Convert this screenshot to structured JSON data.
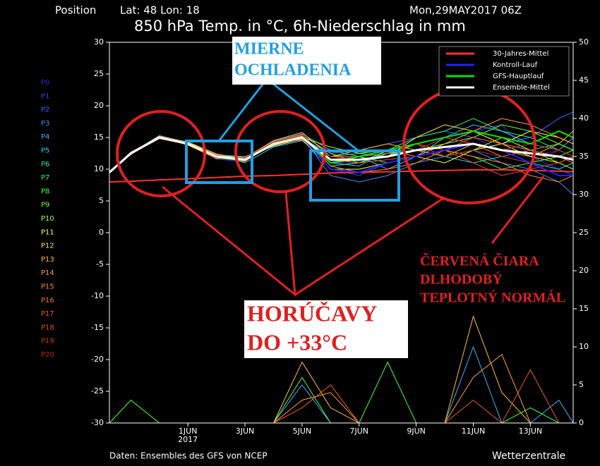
{
  "chart_data": {
    "type": "line",
    "header_left": "Position",
    "position": "Lat: 48 Lon: 18",
    "date": "Mon,29MAY2017 06Z",
    "title": "850 hPa Temp. in °C, 6h-Niederschlag in mm",
    "footer_left": "Daten: Ensembles des GFS von NCEP",
    "footer_right": "Wetterzentrale",
    "x_sublabel": "2017",
    "legend": "upper right",
    "x": [
      29.25,
      30,
      31,
      32,
      33,
      34,
      35,
      36,
      37,
      38,
      39,
      40,
      41,
      42,
      43,
      44,
      45,
      45.5
    ],
    "xlim": [
      29.25,
      45.5
    ],
    "xticks": [
      {
        "value": 32,
        "label": "1JUN"
      },
      {
        "value": 34,
        "label": "3JUN"
      },
      {
        "value": 36,
        "label": "5JUN"
      },
      {
        "value": 38,
        "label": "7JUN"
      },
      {
        "value": 40,
        "label": "9JUN"
      },
      {
        "value": 42,
        "label": "11JUN"
      },
      {
        "value": 44,
        "label": "13JUN"
      }
    ],
    "ylim": [
      -30,
      30
    ],
    "yticks": [
      -30,
      -25,
      -20,
      -15,
      -10,
      -5,
      0,
      5,
      10,
      15,
      20,
      25,
      30
    ],
    "y2lim": [
      0,
      50
    ],
    "y2ticks": [
      0,
      5,
      10,
      15,
      20,
      25,
      30,
      35,
      40,
      45,
      50
    ],
    "members": [
      {
        "name": "P0",
        "color": "#2828d8",
        "values": [
          9.5,
          12.5,
          15,
          14,
          12,
          11.5,
          14,
          15,
          11,
          11,
          12,
          13,
          14,
          15,
          13,
          12,
          13,
          12
        ]
      },
      {
        "name": "P1",
        "color": "#3040ff",
        "values": [
          9.4,
          12.3,
          15.2,
          14.3,
          11.6,
          11.2,
          14.2,
          15.5,
          10,
          9,
          11,
          12,
          14,
          16,
          17,
          12,
          10,
          9
        ]
      },
      {
        "name": "P2",
        "color": "#3068ff",
        "values": [
          9.6,
          12.6,
          15.1,
          13.8,
          12.3,
          12,
          13.6,
          14.8,
          12.5,
          13,
          14,
          15,
          16,
          15,
          14,
          15,
          18,
          19
        ]
      },
      {
        "name": "P3",
        "color": "#3890ff",
        "values": [
          9.5,
          12.4,
          14.8,
          14.1,
          11.8,
          11.4,
          13.8,
          15.2,
          9,
          8,
          9,
          11,
          12,
          13,
          11,
          10,
          8,
          6
        ]
      },
      {
        "name": "P4",
        "color": "#40b0ff",
        "values": [
          9.5,
          12.7,
          15,
          14,
          12.2,
          11.8,
          14.4,
          15.6,
          13,
          12,
          10,
          12,
          15,
          17,
          16,
          14,
          13,
          15
        ],
        "precip": [
          0,
          0,
          0,
          0,
          0,
          0,
          0,
          5,
          0,
          0,
          0,
          0,
          0,
          10,
          0,
          0,
          3,
          0
        ]
      },
      {
        "name": "P5",
        "color": "#30d0e0",
        "values": [
          9.4,
          12.5,
          15.3,
          14.2,
          12.4,
          11,
          13.5,
          14.5,
          11,
          10.5,
          13,
          14,
          12,
          11,
          12,
          11,
          10,
          11
        ]
      },
      {
        "name": "P6",
        "color": "#30e0a0",
        "values": [
          9.6,
          12.4,
          14.9,
          13.9,
          11.9,
          11.6,
          14.1,
          15.1,
          12,
          12.5,
          12,
          14,
          15,
          16,
          14,
          13,
          14,
          13
        ]
      },
      {
        "name": "P7",
        "color": "#30f070",
        "values": [
          9.5,
          12.6,
          15.1,
          14,
          12,
          11.7,
          14,
          15.3,
          10.5,
          11,
          13,
          15,
          16,
          18,
          16,
          15,
          13,
          12
        ]
      },
      {
        "name": "P8",
        "color": "#40ff40",
        "values": [
          9.5,
          12.5,
          15,
          14.1,
          12.1,
          11.5,
          13.9,
          14.9,
          11.5,
          12,
          11,
          12,
          13,
          12,
          10,
          11,
          12,
          13
        ],
        "precip": [
          0,
          3,
          0,
          0,
          0,
          0,
          0,
          6,
          0,
          0,
          8,
          0,
          0,
          0,
          0,
          2,
          0,
          0
        ]
      },
      {
        "name": "P9",
        "color": "#70ff30",
        "values": [
          9.4,
          12.4,
          15,
          13.9,
          11.8,
          11.3,
          14.3,
          15.4,
          12.5,
          11,
          12.5,
          13,
          14,
          15,
          17,
          16,
          14,
          13
        ]
      },
      {
        "name": "P10",
        "color": "#a0ff30",
        "values": [
          9.6,
          12.6,
          15.2,
          14.2,
          12.2,
          11.9,
          14,
          15,
          13.5,
          12.5,
          13,
          14,
          12,
          13,
          15,
          13,
          11,
          10
        ]
      },
      {
        "name": "P11",
        "color": "#ffff40",
        "values": [
          9.5,
          12.5,
          14.9,
          14,
          12,
          11.6,
          13.7,
          14.7,
          10,
          10,
          11,
          12,
          11,
          13,
          14,
          16,
          15,
          14
        ]
      },
      {
        "name": "P12",
        "color": "#ffe040",
        "values": [
          9.5,
          12.3,
          15,
          14.3,
          12.4,
          11.4,
          14.2,
          15.2,
          11,
          11.5,
          12,
          15,
          17,
          16,
          14,
          12,
          11,
          12
        ]
      },
      {
        "name": "P13",
        "color": "#ffc030",
        "values": [
          9.5,
          12.6,
          15.1,
          13.8,
          11.7,
          11.8,
          14.5,
          15.8,
          12,
          13,
          14,
          13,
          12,
          14,
          13,
          12,
          14,
          16
        ],
        "precip": [
          0,
          0,
          0,
          0,
          0,
          0,
          0,
          8,
          2,
          0,
          0,
          0,
          0,
          14,
          4,
          0,
          0,
          0
        ]
      },
      {
        "name": "P14",
        "color": "#ffa030",
        "values": [
          9.4,
          12.5,
          15,
          14,
          12,
          11.5,
          13.8,
          15,
          11,
          12,
          13,
          12,
          14,
          16,
          18,
          17,
          15,
          14
        ],
        "precip": [
          0,
          0,
          0,
          0,
          0,
          0,
          0,
          3,
          4,
          0,
          0,
          0,
          0,
          6,
          9,
          0,
          0,
          0
        ]
      },
      {
        "name": "P15",
        "color": "#ff8830",
        "values": [
          9.6,
          12.4,
          15.2,
          14.1,
          12.3,
          11.2,
          14.1,
          15.4,
          10.5,
          9.5,
          10,
          11,
          13,
          12,
          11,
          9,
          8,
          9
        ]
      },
      {
        "name": "P16",
        "color": "#ff7030",
        "values": [
          9.5,
          12.5,
          14.8,
          13.9,
          12.1,
          11.6,
          14,
          14.6,
          12,
          12,
          12.5,
          14,
          15,
          14,
          12,
          13,
          12,
          11
        ]
      },
      {
        "name": "P17",
        "color": "#f05828",
        "values": [
          9.5,
          12.7,
          15,
          14.2,
          11.9,
          11.4,
          13.9,
          15.1,
          11.5,
          11,
          11.5,
          12,
          13,
          15,
          14,
          13,
          12,
          11
        ],
        "precip": [
          0,
          0,
          0,
          0,
          0,
          0,
          0,
          2,
          5,
          0,
          0,
          0,
          0,
          3,
          0,
          7,
          0,
          0
        ]
      },
      {
        "name": "P18",
        "color": "#e04828",
        "values": [
          9.5,
          12.5,
          15.1,
          14,
          12,
          11.7,
          14.3,
          15.5,
          11,
          12,
          13,
          14,
          13,
          11,
          9,
          10,
          11,
          12
        ]
      },
      {
        "name": "P19",
        "color": "#d03820",
        "values": [
          9.4,
          12.4,
          15,
          14.1,
          12.2,
          11.5,
          14,
          15,
          12,
          11.5,
          12,
          13,
          15,
          14,
          13,
          14,
          13,
          12
        ]
      },
      {
        "name": "P20",
        "color": "#b82818",
        "values": [
          9.6,
          12.6,
          14.9,
          13.9,
          11.8,
          11.8,
          14.2,
          15.3,
          11.5,
          12,
          13,
          14,
          12,
          13,
          12,
          11,
          13,
          12
        ]
      }
    ],
    "series": [
      {
        "name": "30-Jahres-Mittel",
        "color": "#ff3030",
        "values": [
          8,
          8.1,
          8.3,
          8.5,
          8.7,
          8.9,
          9,
          9.2,
          9.4,
          9.5,
          9.6,
          9.7,
          9.8,
          9.9,
          9.9,
          9.8,
          9.7,
          9.6
        ]
      },
      {
        "name": "Kontroll-Lauf",
        "color": "#2020ff",
        "values": [
          9.5,
          12.4,
          15,
          14,
          12,
          11.5,
          14,
          15,
          10,
          9.5,
          11,
          12,
          13,
          14,
          13,
          11,
          9,
          9
        ]
      },
      {
        "name": "GFS-Hauptlauf",
        "color": "#00e000",
        "values": [
          9.5,
          12.5,
          15,
          14,
          12,
          11.5,
          14,
          15,
          11,
          12,
          13,
          14,
          15,
          16,
          15,
          14,
          16,
          15
        ]
      },
      {
        "name": "Ensemble-Mittel",
        "color": "#ffffff",
        "values": [
          9.5,
          12.5,
          15,
          14,
          12,
          11.5,
          14,
          15,
          11.5,
          11.5,
          12,
          13,
          13.5,
          14,
          13,
          12.5,
          12,
          11.5
        ]
      }
    ],
    "annotations": [
      {
        "lines": [
          "MIERNE",
          "OCHLADENIA"
        ]
      },
      {
        "lines": [
          "HORÚČAVY",
          "DO +33°C"
        ]
      },
      {
        "lines": [
          "ČERVENÁ ČIARA",
          "DLHODOBÝ",
          "TEPLOTNÝ NORMÁL"
        ]
      }
    ]
  }
}
